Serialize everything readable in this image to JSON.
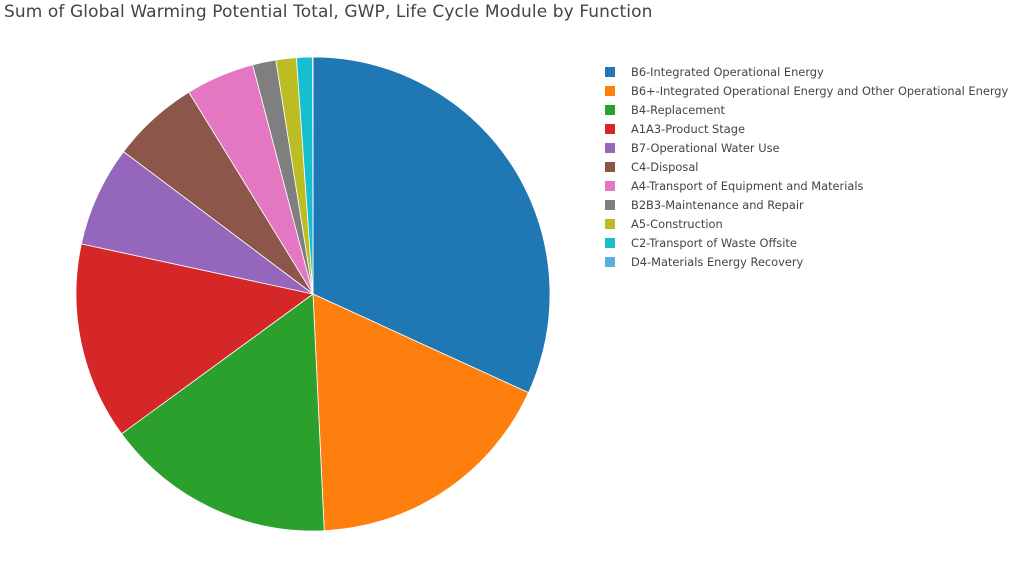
{
  "chart_data": {
    "type": "pie",
    "title": "Sum of Global Warming Potential Total, GWP, Life Cycle Module by Function",
    "sort": "descending",
    "direction": "clockwise",
    "start": "12 o'clock",
    "legend_position": "right",
    "slices": [
      {
        "label": "B6-Integrated Operational Energy",
        "value": 32.0,
        "color": "#1f77b4"
      },
      {
        "label": "B6+-Integrated Operational Energy and Other Operational Energy",
        "value": 17.5,
        "color": "#ff7f0e"
      },
      {
        "label": "B4-Replacement",
        "value": 15.8,
        "color": "#2ca02c"
      },
      {
        "label": "A1A3-Product Stage",
        "value": 13.5,
        "color": "#d62728"
      },
      {
        "label": "B7-Operational Water Use",
        "value": 6.9,
        "color": "#9467bd"
      },
      {
        "label": "C4-Disposal",
        "value": 6.0,
        "color": "#8c564b"
      },
      {
        "label": "A4-Transport of Equipment and Materials",
        "value": 4.7,
        "color": "#e377c2"
      },
      {
        "label": "B2B3-Maintenance and Repair",
        "value": 1.6,
        "color": "#7f7f7f"
      },
      {
        "label": "A5-Construction",
        "value": 1.4,
        "color": "#bcbd22"
      },
      {
        "label": "C2-Transport of Waste Offsite",
        "value": 1.1,
        "color": "#17becf"
      },
      {
        "label": "D4-Materials Energy Recovery",
        "value": 0.02,
        "color": "#5dade2"
      }
    ]
  }
}
